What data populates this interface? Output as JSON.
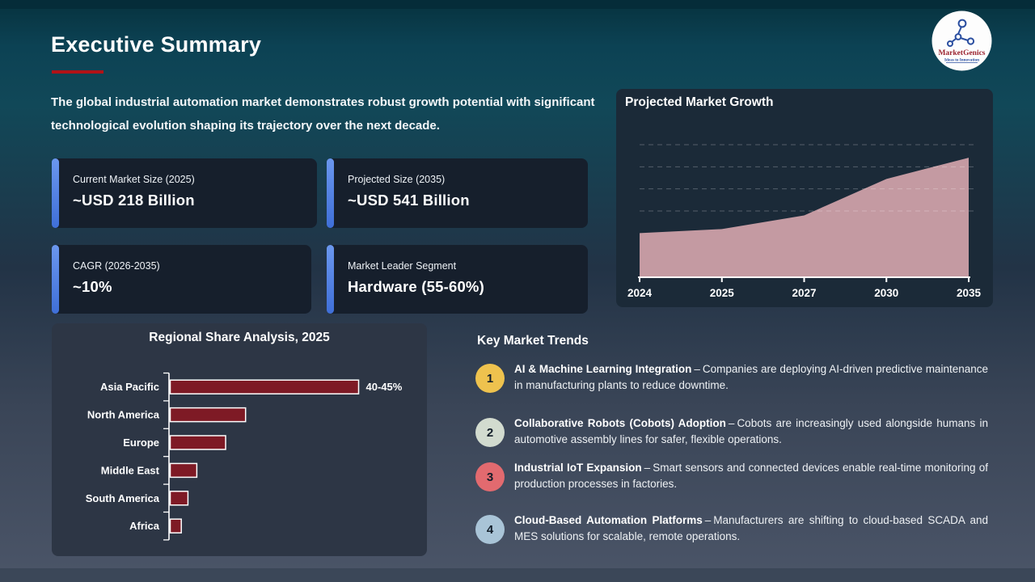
{
  "page": {
    "title": "Executive Summary",
    "intro": "The global industrial automation market demonstrates robust growth potential with significant technological evolution shaping its trajectory over the next decade."
  },
  "logo": {
    "name": "MarketGenics",
    "tagline": "Ideas to Innovation"
  },
  "stat_cards": [
    {
      "label": "Current Market Size (2025)",
      "value": "~USD 218 Billion"
    },
    {
      "label": "Projected Size (2035)",
      "value": "~USD 541 Billion"
    },
    {
      "label": "CAGR (2026-2035)",
      "value": "~10%"
    },
    {
      "label": "Market Leader Segment",
      "value": "Hardware (55-60%)"
    }
  ],
  "chart_data": [
    {
      "type": "area",
      "title": "Projected Market Growth",
      "x": [
        "2024",
        "2025",
        "2027",
        "2030",
        "2035"
      ],
      "values": [
        200,
        218,
        280,
        445,
        541
      ],
      "ylabel": "",
      "xlabel": "",
      "ylim": [
        0,
        640
      ],
      "gridlines": [
        300,
        400,
        500,
        600
      ],
      "grid_style": "dashed-horizontal",
      "legend": "none",
      "area_color": "#c49aa2",
      "axis_color": "#ffffff"
    },
    {
      "type": "bar",
      "title": "Regional Share Analysis, 2025",
      "orientation": "horizontal",
      "categories": [
        "Asia Pacific",
        "North America",
        "Europe",
        "Middle East",
        "South America",
        "Africa"
      ],
      "values": [
        42.5,
        17,
        12.5,
        6,
        4,
        2.5
      ],
      "data_labels": [
        "40-45%",
        "",
        "",
        "",
        "",
        ""
      ],
      "xlim": [
        0,
        52
      ],
      "bar_color": "#7e1a25",
      "bar_border": "#ffffff",
      "axis_color": "#ffffff",
      "legend": "none"
    }
  ],
  "trends": {
    "heading": "Key Market Trends",
    "separator": "–",
    "items": [
      {
        "num": "1",
        "badge_color": "#eec24e",
        "title": "AI & Machine Learning Integration",
        "desc": "Companies are deploying AI-driven predictive maintenance in manufacturing plants to reduce downtime."
      },
      {
        "num": "2",
        "badge_color": "#d2dbcf",
        "title": "Collaborative Robots (Cobots) Adoption",
        "desc": "Cobots are increasingly used alongside humans in automotive assembly lines for safer, flexible operations."
      },
      {
        "num": "3",
        "badge_color": "#e26a6f",
        "title": "Industrial IoT Expansion",
        "desc": "Smart sensors and connected devices enable real-time monitoring of production processes in factories."
      },
      {
        "num": "4",
        "badge_color": "#a9c4d7",
        "title": "Cloud-Based Automation Platforms",
        "desc": "Manufacturers are shifting to cloud-based SCADA and MES solutions for scalable, remote operations."
      }
    ]
  },
  "colors": {
    "accent_red": "#b11217",
    "card_accent_blue": "#4a7de0",
    "background_top": "#0c4254",
    "background_bottom": "#4b5568",
    "panel_dark": "#1b2a38",
    "panel_slate": "#2d3645"
  }
}
